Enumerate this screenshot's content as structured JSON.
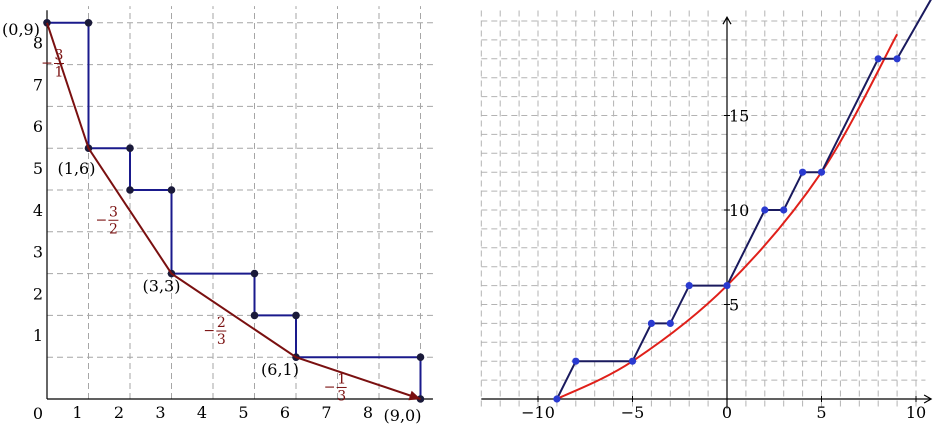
{
  "left": {
    "ticks_x": [
      "0",
      "1",
      "2",
      "3",
      "4",
      "5",
      "6",
      "7",
      "8"
    ],
    "ticks_y": [
      "0",
      "1",
      "2",
      "3",
      "4",
      "5",
      "6",
      "7",
      "8"
    ],
    "grid_xmax": 9,
    "grid_ymax": 9,
    "staircase": [
      [
        0,
        9
      ],
      [
        1,
        9
      ],
      [
        1,
        6
      ],
      [
        2,
        6
      ],
      [
        2,
        5
      ],
      [
        3,
        5
      ],
      [
        3,
        3
      ],
      [
        5,
        3
      ],
      [
        5,
        2
      ],
      [
        6,
        2
      ],
      [
        6,
        1
      ],
      [
        9,
        1
      ],
      [
        9,
        0
      ]
    ],
    "envelope": [
      [
        0,
        9
      ],
      [
        1,
        6
      ],
      [
        3,
        3
      ],
      [
        6,
        1
      ],
      [
        9,
        0
      ]
    ],
    "point_labels": [
      {
        "text": "(0,9)",
        "x": 0,
        "y": 9
      },
      {
        "text": "(1,6)",
        "x": 1,
        "y": 6
      },
      {
        "text": "(3,3)",
        "x": 3,
        "y": 3
      },
      {
        "text": "(6,1)",
        "x": 6,
        "y": 1
      },
      {
        "text": "(9,0)",
        "x": 9,
        "y": 0
      }
    ],
    "slopes": [
      {
        "sign": "−",
        "num": "3",
        "den": "1"
      },
      {
        "sign": "−",
        "num": "3",
        "den": "2"
      },
      {
        "sign": "−",
        "num": "2",
        "den": "3"
      },
      {
        "sign": "−",
        "num": "1",
        "den": "3"
      }
    ],
    "colors": {
      "staircase": "#1a1a8c",
      "envelope": "#7a1010",
      "grid": "#a6a6a6"
    }
  },
  "right": {
    "ticks_x": [
      "−10",
      "−5",
      "0",
      "5",
      "10"
    ],
    "ticks_y": [
      "5",
      "10",
      "15"
    ],
    "xlim": [
      -13,
      11
    ],
    "ylim": [
      0,
      21
    ],
    "staircase": [
      [
        -9,
        0
      ],
      [
        -8,
        2
      ],
      [
        -5,
        2
      ],
      [
        -4,
        4
      ],
      [
        -3,
        4
      ],
      [
        -2,
        6
      ],
      [
        0,
        6
      ],
      [
        2,
        10
      ],
      [
        3,
        10
      ],
      [
        4,
        12
      ],
      [
        5,
        12
      ],
      [
        8,
        18
      ],
      [
        9,
        18
      ],
      [
        11,
        21.5
      ]
    ],
    "points": [
      [
        -9,
        0
      ],
      [
        -8,
        2
      ],
      [
        -5,
        2
      ],
      [
        -4,
        4
      ],
      [
        -3,
        4
      ],
      [
        -2,
        6
      ],
      [
        0,
        6
      ],
      [
        2,
        10
      ],
      [
        3,
        10
      ],
      [
        4,
        12
      ],
      [
        5,
        12
      ],
      [
        8,
        18
      ],
      [
        9,
        18
      ]
    ],
    "convex_curve": [
      [
        -9,
        0
      ],
      [
        -5,
        2
      ],
      [
        0,
        6
      ],
      [
        5,
        12
      ],
      [
        9,
        19.3
      ]
    ],
    "colors": {
      "staircase": "#1a1a5e",
      "curve": "#e0201a",
      "points": "#2a3ad0",
      "grid": "#b3b3b3"
    }
  }
}
